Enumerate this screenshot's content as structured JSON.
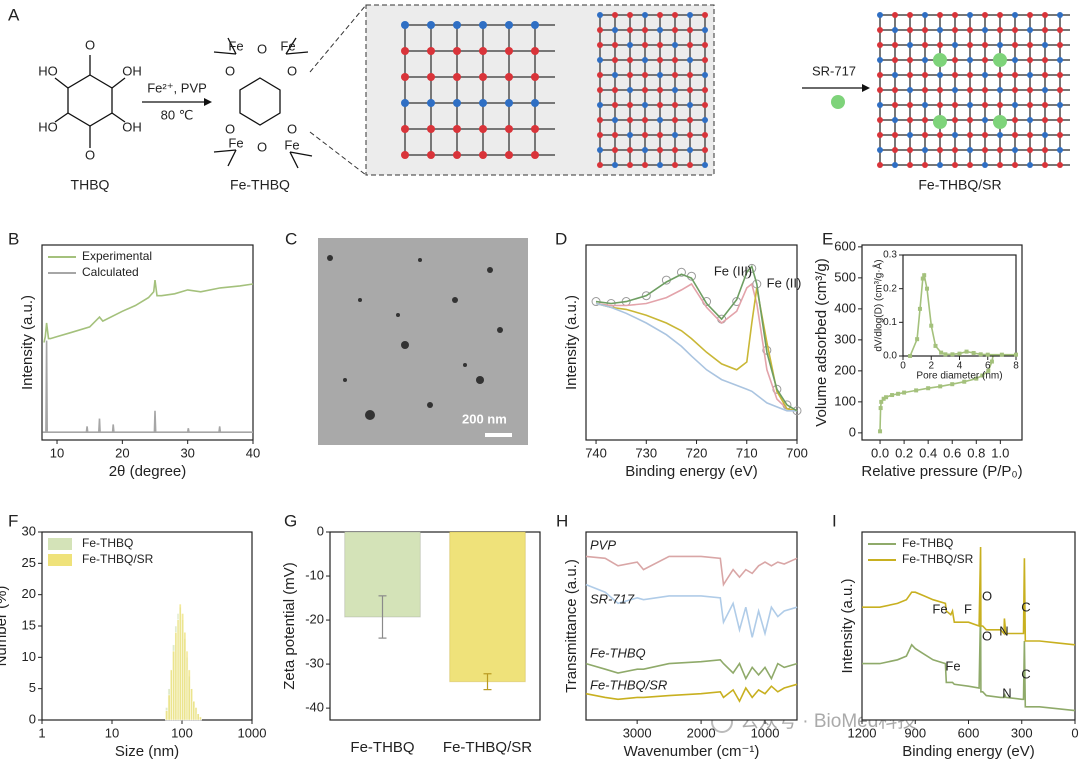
{
  "panel_labels": [
    "A",
    "B",
    "C",
    "D",
    "E",
    "F",
    "G",
    "H",
    "I"
  ],
  "panel_a": {
    "names": [
      "THBQ",
      "Fe-THBQ",
      "Fe-THBQ/SR"
    ],
    "conditions": [
      "Fe²⁺, PVP",
      "80 ℃"
    ],
    "step": "SR-717",
    "thbq_atoms": [
      "HO",
      "O",
      "OH",
      "HO",
      "O",
      "OH"
    ],
    "fe_thbq_atoms": [
      "Fe",
      "O",
      "Fe",
      "O",
      "O",
      "O",
      "O",
      "O",
      "Fe",
      "Fe"
    ]
  },
  "panel_c": {
    "scale_bar": "200 nm"
  },
  "watermark": "公众号 · BioMed科技",
  "chart_data": [
    {
      "type": "line",
      "xlabel": "2θ (degree)",
      "ylabel": "Intensity (a.u.)",
      "xlim": [
        7.7,
        40
      ],
      "xticks": [
        10,
        20,
        30,
        40
      ],
      "ylim": [
        0,
        1
      ],
      "legend": "upper left",
      "series": [
        {
          "name": "Experimental",
          "color": "#a4c17c",
          "x": [
            8,
            8.2,
            8.4,
            8.7,
            9,
            10,
            12,
            15,
            16.5,
            17,
            20,
            22,
            24,
            24.8,
            25,
            25.3,
            26,
            28,
            30,
            32,
            35,
            38,
            40
          ],
          "values": [
            0.5,
            0.53,
            0.6,
            0.52,
            0.52,
            0.53,
            0.55,
            0.58,
            0.63,
            0.61,
            0.66,
            0.69,
            0.73,
            0.76,
            0.82,
            0.74,
            0.74,
            0.75,
            0.77,
            0.76,
            0.78,
            0.79,
            0.8
          ]
        },
        {
          "name": "Calculated",
          "color": "#a6a6a6",
          "x": [
            7.8,
            8.3,
            8.4,
            8.5,
            14.5,
            14.6,
            14.7,
            16.4,
            16.5,
            16.6,
            18.5,
            18.6,
            18.7,
            24.9,
            25,
            25.1,
            30,
            30.1,
            30.2,
            34.8,
            34.9,
            35,
            40
          ],
          "values": [
            0.04,
            0.04,
            0.51,
            0.04,
            0.04,
            0.07,
            0.04,
            0.04,
            0.11,
            0.04,
            0.04,
            0.08,
            0.04,
            0.04,
            0.15,
            0.04,
            0.04,
            0.06,
            0.04,
            0.04,
            0.07,
            0.04,
            0.04
          ]
        }
      ]
    },
    {
      "type": "line",
      "xlabel": "Binding energy (eV)",
      "ylabel": "Intensity (a.u.)",
      "xlim": [
        742,
        700
      ],
      "xticks": [
        740,
        730,
        720,
        710,
        700
      ],
      "ylim": [
        0,
        1
      ],
      "annotations": [
        "Fe (III)",
        "Fe (II)"
      ],
      "x": [
        740,
        737,
        734,
        730,
        726,
        723,
        721,
        718,
        715,
        712,
        710,
        709,
        708,
        706,
        704,
        702,
        700
      ],
      "series": [
        {
          "color": "#9a9a9a",
          "marker": "circle",
          "values": [
            0.71,
            0.7,
            0.71,
            0.74,
            0.82,
            0.86,
            0.84,
            0.71,
            0.62,
            0.71,
            0.85,
            0.88,
            0.8,
            0.46,
            0.26,
            0.18,
            0.15
          ]
        },
        {
          "color": "#e3a3aa",
          "values": [
            0.7,
            0.69,
            0.69,
            0.7,
            0.73,
            0.77,
            0.8,
            0.68,
            0.6,
            0.66,
            0.78,
            0.8,
            0.7,
            0.36,
            0.21,
            0.16,
            0.15
          ]
        },
        {
          "color": "#c9b736",
          "values": [
            0.7,
            0.68,
            0.67,
            0.64,
            0.6,
            0.56,
            0.52,
            0.45,
            0.39,
            0.36,
            0.4,
            0.6,
            0.78,
            0.5,
            0.25,
            0.16,
            0.15
          ]
        },
        {
          "color": "#aac4e0",
          "values": [
            0.7,
            0.68,
            0.65,
            0.6,
            0.54,
            0.48,
            0.43,
            0.36,
            0.31,
            0.28,
            0.26,
            0.25,
            0.23,
            0.19,
            0.17,
            0.15,
            0.15
          ]
        },
        {
          "color": "#6e9e62",
          "values": [
            0.71,
            0.7,
            0.71,
            0.74,
            0.81,
            0.85,
            0.83,
            0.7,
            0.62,
            0.72,
            0.86,
            0.89,
            0.8,
            0.45,
            0.26,
            0.18,
            0.15
          ]
        }
      ]
    },
    {
      "type": "line",
      "xlabel": "Relative pressure (P/P₀)",
      "ylabel": "Volume adsorbed (cm³/g)",
      "xlim": [
        -0.15,
        1.18
      ],
      "xticks": [
        {
          "value": 0,
          "label": "0.0"
        },
        0.2,
        0.4,
        0.6,
        0.8,
        {
          "value": 1,
          "label": "1.0"
        }
      ],
      "ylim": [
        -23,
        606
      ],
      "yticks": [
        0,
        100,
        200,
        300,
        400,
        500,
        600
      ],
      "series": [
        {
          "color": "#a4c17c",
          "marker": "square",
          "x": [
            0,
            0.005,
            0.01,
            0.03,
            0.05,
            0.1,
            0.15,
            0.2,
            0.3,
            0.4,
            0.5,
            0.6,
            0.7,
            0.8,
            0.85,
            0.9,
            0.93,
            0.95,
            0.97,
            0.98
          ],
          "values": [
            5,
            80,
            100,
            110,
            115,
            122,
            126,
            130,
            137,
            144,
            150,
            157,
            165,
            175,
            185,
            200,
            230,
            270,
            330,
            385
          ]
        }
      ]
    },
    {
      "type": "line",
      "xlabel": "Pore diameter (nm)",
      "ylabel": "dV/dlog(D) (cm³/g·Å)",
      "xlim": [
        0,
        8
      ],
      "xticks": [
        0,
        2,
        4,
        6,
        8
      ],
      "ylim": [
        0,
        0.3
      ],
      "yticks": [
        {
          "value": 0,
          "label": "0.0"
        },
        0.1,
        0.2,
        0.3
      ],
      "series": [
        {
          "color": "#a4c17c",
          "marker": "square",
          "x": [
            0.5,
            1,
            1.2,
            1.4,
            1.5,
            1.7,
            2,
            2.3,
            2.7,
            3,
            3.5,
            4,
            4.5,
            5,
            5.5,
            6,
            7,
            8
          ],
          "values": [
            0.0,
            0.05,
            0.14,
            0.23,
            0.24,
            0.2,
            0.09,
            0.03,
            0.01,
            0.005,
            0.005,
            0.007,
            0.013,
            0.009,
            0.005,
            0.004,
            0.004,
            0.004
          ]
        }
      ]
    },
    {
      "type": "histogram",
      "xlabel": "Size (nm)",
      "ylabel": "Number (%)",
      "xscale": "log",
      "xlim": [
        1,
        1000
      ],
      "xticks": [
        1,
        10,
        100,
        1000
      ],
      "ylim": [
        0,
        30
      ],
      "yticks": [
        0,
        5,
        10,
        15,
        20,
        25,
        30
      ],
      "legend": "upper left",
      "bins": [
        58,
        63,
        68,
        73,
        79,
        85,
        91,
        98,
        106,
        114,
        122,
        132,
        142,
        153,
        164,
        177,
        190
      ],
      "series": [
        {
          "name": "Fe-THBQ",
          "color": "#d4e3b8",
          "values": [
            2,
            5,
            8,
            12,
            15,
            17,
            18,
            16,
            13,
            10,
            7,
            5,
            3,
            2,
            1,
            0.5
          ]
        },
        {
          "name": "Fe-THBQ/SR",
          "color": "#efe27a",
          "values": [
            1.5,
            4,
            8,
            11,
            14,
            16,
            18.5,
            17,
            14,
            11,
            8,
            5,
            3,
            2,
            1,
            0.5
          ]
        }
      ]
    },
    {
      "type": "bar",
      "ylabel": "Zeta potential (mV)",
      "categories": [
        "Fe-THBQ",
        "Fe-THBQ/SR"
      ],
      "values": [
        -19.3,
        -34
      ],
      "errors": [
        4.8,
        1.8
      ],
      "colors": [
        "#d4e3b8",
        "#efe27a"
      ],
      "error_colors": [
        "#8a8a8a",
        "#b99a20"
      ],
      "ylim": [
        -42.7,
        0
      ],
      "yticks": [
        0,
        -10,
        -20,
        -30,
        -40
      ]
    },
    {
      "type": "line",
      "xlabel": "Wavenumber (cm⁻¹)",
      "ylabel": "Transmittance (a.u.)",
      "xlim": [
        3800,
        500
      ],
      "xticks": [
        3000,
        2000,
        1000
      ],
      "ylim": [
        0,
        1
      ],
      "legend": "inline",
      "x": [
        3800,
        3500,
        3300,
        3000,
        2900,
        2500,
        2000,
        1700,
        1650,
        1500,
        1400,
        1300,
        1200,
        1100,
        1000,
        900,
        800,
        700,
        500
      ],
      "series": [
        {
          "name": "PVP",
          "color": "#d9a6a6",
          "values": [
            0.87,
            0.86,
            0.82,
            0.84,
            0.8,
            0.87,
            0.87,
            0.86,
            0.72,
            0.8,
            0.76,
            0.8,
            0.78,
            0.82,
            0.84,
            0.82,
            0.84,
            0.83,
            0.86
          ]
        },
        {
          "name": "SR-717",
          "color": "#b0cce8",
          "values": [
            0.72,
            0.68,
            0.62,
            0.65,
            0.64,
            0.66,
            0.66,
            0.65,
            0.52,
            0.62,
            0.48,
            0.6,
            0.44,
            0.58,
            0.46,
            0.6,
            0.55,
            0.58,
            0.6
          ]
        },
        {
          "name": "Fe-THBQ",
          "color": "#8faa6a",
          "values": [
            0.3,
            0.27,
            0.25,
            0.27,
            0.27,
            0.3,
            0.31,
            0.32,
            0.3,
            0.25,
            0.3,
            0.22,
            0.28,
            0.24,
            0.28,
            0.22,
            0.3,
            0.28,
            0.3
          ]
        },
        {
          "name": "Fe-THBQ/SR",
          "color": "#c8b020",
          "values": [
            0.14,
            0.12,
            0.11,
            0.12,
            0.12,
            0.13,
            0.14,
            0.15,
            0.12,
            0.16,
            0.1,
            0.17,
            0.12,
            0.16,
            0.14,
            0.18,
            0.15,
            0.17,
            0.19
          ]
        }
      ]
    },
    {
      "type": "line",
      "xlabel": "Binding energy (eV)",
      "ylabel": "Intensity (a.u.)",
      "xlim": [
        1200,
        0
      ],
      "xticks": [
        1200,
        900,
        600,
        300,
        0
      ],
      "ylim": [
        0,
        1
      ],
      "legend": "upper left",
      "annotations": [
        "Fe",
        "F",
        "O",
        "N",
        "C",
        "O",
        "Fe",
        "N",
        "C"
      ],
      "x": [
        1200,
        1100,
        1000,
        950,
        920,
        900,
        850,
        800,
        730,
        725,
        700,
        690,
        680,
        600,
        540,
        532,
        530,
        520,
        500,
        420,
        400,
        398,
        390,
        300,
        290,
        285,
        280,
        200,
        100,
        0
      ],
      "series": [
        {
          "name": "Fe-THBQ",
          "color": "#8faa6a",
          "values": [
            0.3,
            0.3,
            0.32,
            0.34,
            0.4,
            0.38,
            0.35,
            0.32,
            0.3,
            0.2,
            0.2,
            0.2,
            0.19,
            0.18,
            0.17,
            0.6,
            0.15,
            0.15,
            0.13,
            0.12,
            0.12,
            0.14,
            0.12,
            0.11,
            0.11,
            0.42,
            0.07,
            0.07,
            0.06,
            0.05
          ]
        },
        {
          "name": "Fe-THBQ/SR",
          "color": "#c8b020",
          "values": [
            0.6,
            0.6,
            0.62,
            0.64,
            0.68,
            0.68,
            0.66,
            0.64,
            0.62,
            0.58,
            0.56,
            0.58,
            0.52,
            0.52,
            0.5,
            0.92,
            0.5,
            0.5,
            0.48,
            0.48,
            0.46,
            0.54,
            0.46,
            0.46,
            0.46,
            0.86,
            0.42,
            0.42,
            0.41,
            0.4
          ]
        }
      ]
    }
  ]
}
